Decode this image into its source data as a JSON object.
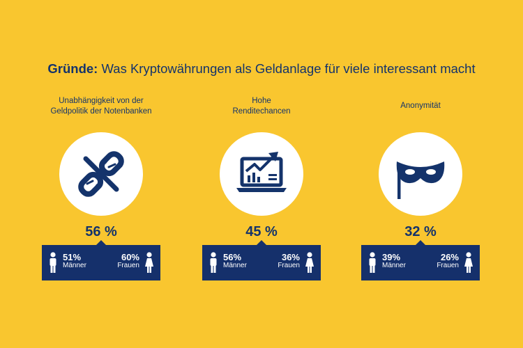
{
  "title": {
    "bold": "Gründe:",
    "rest": " Was Kryptowährungen als Geldanlage für viele interessant macht"
  },
  "chart_data": {
    "type": "infographic",
    "categories": [
      "Unabhängigkeit von der Geldpolitik der Notenbanken",
      "Hohe Renditechancen",
      "Anonymität"
    ],
    "series": [
      {
        "name": "",
        "values": [
          56,
          45,
          32
        ]
      },
      {
        "name": "Männer",
        "values": [
          51,
          56,
          39
        ]
      },
      {
        "name": "Frauen",
        "values": [
          60,
          36,
          26
        ]
      }
    ]
  },
  "reasons": [
    {
      "caption_line1": "Unabhängigkeit von der",
      "caption_line2": "Geldpolitik der Notenbanken",
      "icon": "broken-chain-icon",
      "total": "56 %",
      "men_value": "51%",
      "men_label": "Männer",
      "women_value": "60%",
      "women_label": "Frauen"
    },
    {
      "caption_line1": "Hohe",
      "caption_line2": "Renditechancen",
      "icon": "laptop-chart-icon",
      "total": "45 %",
      "men_value": "56%",
      "men_label": "Männer",
      "women_value": "36%",
      "women_label": "Frauen"
    },
    {
      "caption_line1": "Anonymität",
      "caption_line2": "",
      "icon": "mask-flag-icon",
      "total": "32 %",
      "men_value": "39%",
      "men_label": "Männer",
      "women_value": "26%",
      "women_label": "Frauen"
    }
  ],
  "colors": {
    "background": "#f9c62f",
    "navy": "#14336b",
    "white": "#ffffff"
  }
}
